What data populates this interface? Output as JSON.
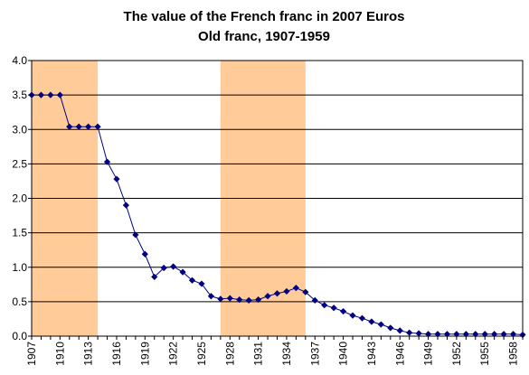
{
  "chart_data": {
    "type": "line",
    "title": "The value of the French franc in 2007 Euros",
    "subtitle": "Old franc, 1907-1959",
    "xlabel": "",
    "ylabel": "",
    "xlim": [
      1907,
      1959
    ],
    "ylim": [
      0,
      4.0
    ],
    "grid": true,
    "legend": "none",
    "y_ticks": [
      "0.0",
      "0.5",
      "1.0",
      "1.5",
      "2.0",
      "2.5",
      "3.0",
      "3.5",
      "4.0"
    ],
    "x_ticks": [
      "1907",
      "1910",
      "1913",
      "1916",
      "1919",
      "1922",
      "1925",
      "1928",
      "1931",
      "1934",
      "1937",
      "1940",
      "1943",
      "1946",
      "1949",
      "1952",
      "1955",
      "1958"
    ],
    "shaded_periods": [
      [
        1907,
        1914
      ],
      [
        1927,
        1936
      ]
    ],
    "colors": {
      "series": "#000080",
      "shade": "#FFCC99",
      "grid": "#000000"
    },
    "series": [
      {
        "x": [
          1907,
          1908,
          1909,
          1910,
          1911,
          1912,
          1913,
          1914,
          1915,
          1916,
          1917,
          1918,
          1919,
          1920,
          1921,
          1922,
          1923,
          1924,
          1925,
          1926,
          1927,
          1928,
          1929,
          1930,
          1931,
          1932,
          1933,
          1934,
          1935,
          1936,
          1937,
          1938,
          1939,
          1940,
          1941,
          1942,
          1943,
          1944,
          1945,
          1946,
          1947,
          1948,
          1949,
          1950,
          1951,
          1952,
          1953,
          1954,
          1955,
          1956,
          1957,
          1958,
          1959
        ],
        "y": [
          3.5,
          3.5,
          3.5,
          3.5,
          3.04,
          3.04,
          3.04,
          3.04,
          2.53,
          2.28,
          1.9,
          1.47,
          1.19,
          0.86,
          0.99,
          1.01,
          0.93,
          0.81,
          0.76,
          0.58,
          0.54,
          0.55,
          0.53,
          0.52,
          0.53,
          0.58,
          0.62,
          0.65,
          0.7,
          0.64,
          0.52,
          0.45,
          0.41,
          0.36,
          0.3,
          0.26,
          0.21,
          0.17,
          0.12,
          0.08,
          0.05,
          0.04,
          0.03,
          0.03,
          0.03,
          0.03,
          0.03,
          0.03,
          0.03,
          0.03,
          0.03,
          0.03,
          0.02
        ]
      }
    ]
  }
}
